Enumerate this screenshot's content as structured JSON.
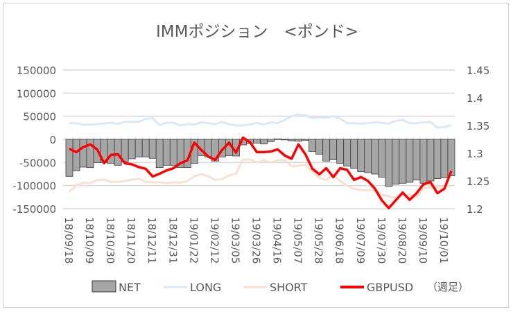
{
  "chart_data": {
    "type": "bar+line",
    "title": "IMMポジション　<ポンド>",
    "note": "（週足）",
    "x_tick_labels": [
      "18/09/18",
      "18/10/09",
      "18/10/30",
      "18/11/20",
      "18/12/11",
      "18/12/31",
      "19/01/22",
      "19/02/12",
      "19/03/05",
      "19/03/26",
      "19/04/16",
      "19/05/07",
      "19/05/28",
      "19/06/18",
      "19/07/09",
      "19/07/30",
      "19/08/20",
      "19/09/10",
      "19/10/01"
    ],
    "x_tick_every": 3,
    "y_left": {
      "min": -150000,
      "max": 150000,
      "step": 50000,
      "ticks": [
        "150000",
        "100000",
        "50000",
        "0",
        "-50000",
        "-100000",
        "-150000"
      ]
    },
    "y_right": {
      "min": 1.2,
      "max": 1.45,
      "step": 0.05,
      "ticks": [
        "1.45",
        "1.4",
        "1.35",
        "1.3",
        "1.25",
        "1.2"
      ]
    },
    "grid": true,
    "legend_placement": "bottom",
    "series": [
      {
        "name": "NET",
        "type": "bar",
        "axis": "left",
        "color": "#a6a6a6",
        "values": [
          -80000,
          -68000,
          -60000,
          -61000,
          -50000,
          -50000,
          -52000,
          -56000,
          -48000,
          -42000,
          -38000,
          -38000,
          -41000,
          -61000,
          -56000,
          -56000,
          -61000,
          -61000,
          -52000,
          -35000,
          -38000,
          -47000,
          -38000,
          -35000,
          -36000,
          -12000,
          -9000,
          -8000,
          -10000,
          -5000,
          1000,
          -1000,
          -3000,
          -4000,
          -2000,
          -26000,
          -32000,
          -47000,
          -44000,
          -52000,
          -58000,
          -63000,
          -70000,
          -72000,
          -75000,
          -82000,
          -102000,
          -97000,
          -95000,
          -93000,
          -88000,
          -95000,
          -90000,
          -85000,
          -83000,
          -79000
        ]
      },
      {
        "name": "LONG",
        "type": "line",
        "axis": "left",
        "color": "#dae8f7",
        "values": [
          35000,
          35000,
          32000,
          32000,
          33000,
          34000,
          36000,
          33000,
          38000,
          38000,
          38000,
          44000,
          46000,
          31000,
          36000,
          36000,
          30000,
          33000,
          32000,
          37000,
          35000,
          33000,
          38000,
          33000,
          30000,
          30000,
          32000,
          36000,
          32000,
          37000,
          35000,
          42000,
          50000,
          54000,
          52000,
          46000,
          48000,
          47000,
          50000,
          45000,
          35000,
          35000,
          34000,
          35000,
          37000,
          36000,
          34000,
          40000,
          42000,
          35000,
          35000,
          37000,
          38000,
          25000,
          27000,
          30000
        ]
      },
      {
        "name": "SHORT",
        "type": "line",
        "axis": "left",
        "color": "#fbe0d0",
        "values": [
          -113000,
          -100000,
          -94000,
          -95000,
          -88000,
          -87000,
          -92000,
          -92000,
          -90000,
          -87000,
          -85000,
          -92000,
          -93000,
          -93000,
          -95000,
          -93000,
          -94000,
          -90000,
          -80000,
          -75000,
          -80000,
          -88000,
          -86000,
          -78000,
          -74000,
          -44000,
          -43000,
          -50000,
          -45000,
          -50000,
          -45000,
          -45000,
          -58000,
          -57000,
          -55000,
          -70000,
          -83000,
          -88000,
          -77000,
          -90000,
          -100000,
          -107000,
          -110000,
          -110000,
          -110000,
          -120000,
          -123000,
          -127000,
          -118000,
          -120000,
          -125000,
          -106000,
          -104000,
          -104000,
          -102000,
          -100000
        ]
      },
      {
        "name": "GBPUSD",
        "type": "line",
        "axis": "right",
        "color": "#ff0000",
        "values": [
          1.308,
          1.302,
          1.311,
          1.316,
          1.307,
          1.282,
          1.297,
          1.298,
          1.282,
          1.28,
          1.275,
          1.272,
          1.258,
          1.263,
          1.269,
          1.273,
          1.282,
          1.287,
          1.319,
          1.306,
          1.294,
          1.288,
          1.306,
          1.319,
          1.301,
          1.328,
          1.32,
          1.302,
          1.302,
          1.303,
          1.307,
          1.296,
          1.29,
          1.316,
          1.298,
          1.272,
          1.262,
          1.273,
          1.257,
          1.273,
          1.27,
          1.252,
          1.257,
          1.25,
          1.236,
          1.215,
          1.201,
          1.215,
          1.229,
          1.216,
          1.228,
          1.244,
          1.248,
          1.228,
          1.236,
          1.268
        ]
      }
    ]
  }
}
